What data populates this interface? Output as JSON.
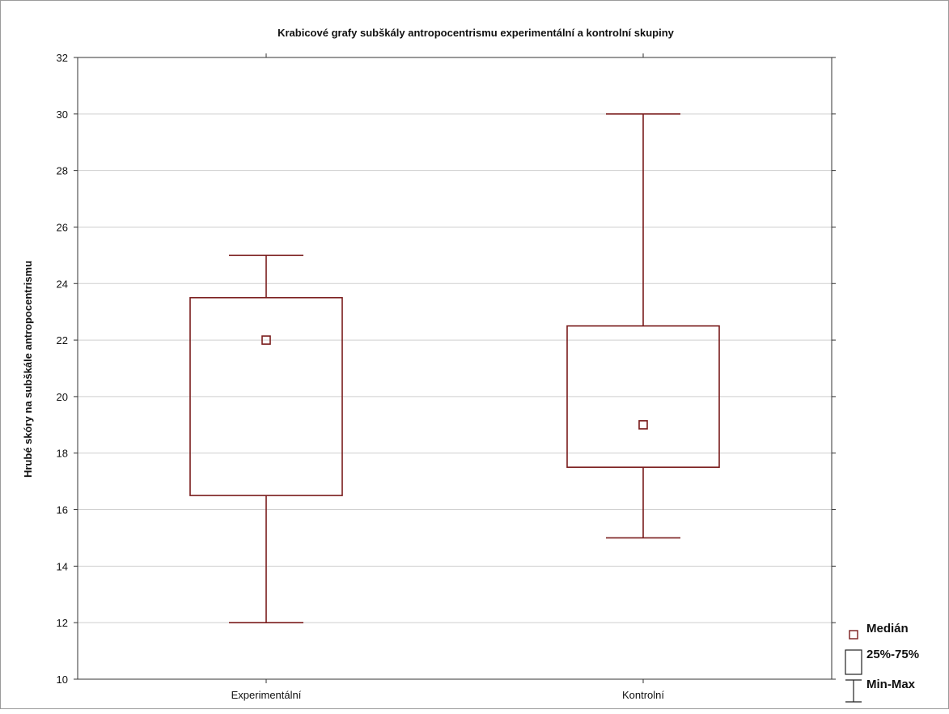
{
  "chart_data": {
    "type": "box",
    "title": "Krabicové grafy subškály antropocentrismu experimentální a kontrolní skupiny",
    "ylabel": "Hrubé skóry na subškále antropocentrismu",
    "xlabel": "",
    "ylim": [
      10,
      32
    ],
    "yticks": [
      10,
      12,
      14,
      16,
      18,
      20,
      22,
      24,
      26,
      28,
      30,
      32
    ],
    "grid": true,
    "legend_placement": "bottom-right",
    "color": "#7a1c1c",
    "categories": [
      "Experimentální",
      "Kontrolní"
    ],
    "boxes": [
      {
        "category": "Experimentální",
        "min": 12,
        "q1": 16.5,
        "median": 22,
        "q3": 23.5,
        "max": 25
      },
      {
        "category": "Kontrolní",
        "min": 15,
        "q1": 17.5,
        "median": 19,
        "q3": 22.5,
        "max": 30
      }
    ],
    "legend": [
      {
        "label": "Medián",
        "symbol": "median-marker"
      },
      {
        "label": "25%-75%",
        "symbol": "box"
      },
      {
        "label": "Min-Max",
        "symbol": "whisker"
      }
    ]
  }
}
